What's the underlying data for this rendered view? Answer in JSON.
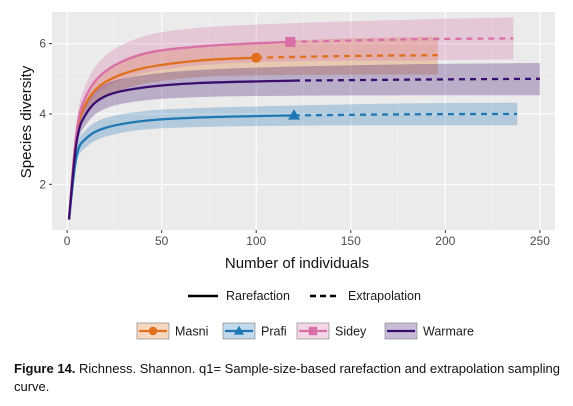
{
  "chart_data": {
    "type": "line",
    "xlabel": "Number of individuals",
    "ylabel": "Species diversity",
    "xlim": [
      -8,
      258
    ],
    "ylim": [
      0.7,
      6.9
    ],
    "x_ticks": [
      0,
      50,
      100,
      150,
      200,
      250
    ],
    "y_ticks": [
      2,
      4,
      6
    ],
    "grid": true,
    "line_types": [
      {
        "name": "Rarefaction",
        "style": "solid"
      },
      {
        "name": "Extrapolation",
        "style": "dashed"
      }
    ],
    "series": [
      {
        "name": "Masni",
        "color": "#E0701E",
        "marker": "circle",
        "observed": [
          100,
          5.6
        ],
        "x_max": 196,
        "points": [
          [
            1,
            1
          ],
          [
            5,
            3.4
          ],
          [
            10,
            4.3
          ],
          [
            20,
            4.9
          ],
          [
            40,
            5.3
          ],
          [
            70,
            5.52
          ],
          [
            100,
            5.6
          ],
          [
            150,
            5.65
          ],
          [
            196,
            5.67
          ]
        ],
        "ci_lower": [
          [
            1,
            1
          ],
          [
            5,
            3.2
          ],
          [
            10,
            4.0
          ],
          [
            20,
            4.5
          ],
          [
            40,
            4.85
          ],
          [
            70,
            5.05
          ],
          [
            100,
            5.1
          ],
          [
            150,
            5.12
          ],
          [
            196,
            5.12
          ]
        ],
        "ci_upper": [
          [
            1,
            1
          ],
          [
            5,
            3.6
          ],
          [
            10,
            4.55
          ],
          [
            20,
            5.25
          ],
          [
            40,
            5.75
          ],
          [
            70,
            5.95
          ],
          [
            100,
            6.05
          ],
          [
            150,
            6.15
          ],
          [
            196,
            6.2
          ]
        ]
      },
      {
        "name": "Prafi",
        "color": "#1F78B4",
        "marker": "triangle",
        "observed": [
          120,
          3.96
        ],
        "x_max": 238,
        "points": [
          [
            1,
            1
          ],
          [
            5,
            2.8
          ],
          [
            10,
            3.3
          ],
          [
            20,
            3.6
          ],
          [
            40,
            3.8
          ],
          [
            70,
            3.9
          ],
          [
            120,
            3.96
          ],
          [
            180,
            3.99
          ],
          [
            238,
            4.0
          ]
        ],
        "ci_lower": [
          [
            1,
            1
          ],
          [
            5,
            2.6
          ],
          [
            10,
            3.05
          ],
          [
            20,
            3.35
          ],
          [
            40,
            3.55
          ],
          [
            70,
            3.63
          ],
          [
            120,
            3.67
          ],
          [
            180,
            3.68
          ],
          [
            238,
            3.68
          ]
        ],
        "ci_upper": [
          [
            1,
            1
          ],
          [
            5,
            3.0
          ],
          [
            10,
            3.55
          ],
          [
            20,
            3.88
          ],
          [
            40,
            4.08
          ],
          [
            70,
            4.17
          ],
          [
            120,
            4.24
          ],
          [
            180,
            4.3
          ],
          [
            238,
            4.32
          ]
        ]
      },
      {
        "name": "Sidey",
        "color": "#D86FA8",
        "marker": "square",
        "observed": [
          118,
          6.05
        ],
        "x_max": 236,
        "points": [
          [
            1,
            1
          ],
          [
            5,
            3.5
          ],
          [
            10,
            4.5
          ],
          [
            20,
            5.2
          ],
          [
            40,
            5.7
          ],
          [
            70,
            5.92
          ],
          [
            118,
            6.05
          ],
          [
            180,
            6.12
          ],
          [
            236,
            6.15
          ]
        ],
        "ci_lower": [
          [
            1,
            1
          ],
          [
            5,
            3.25
          ],
          [
            10,
            4.15
          ],
          [
            20,
            4.75
          ],
          [
            40,
            5.15
          ],
          [
            70,
            5.38
          ],
          [
            118,
            5.5
          ],
          [
            180,
            5.52
          ],
          [
            236,
            5.55
          ]
        ],
        "ci_upper": [
          [
            1,
            1
          ],
          [
            5,
            3.75
          ],
          [
            10,
            4.85
          ],
          [
            20,
            5.65
          ],
          [
            40,
            6.2
          ],
          [
            70,
            6.45
          ],
          [
            118,
            6.58
          ],
          [
            180,
            6.68
          ],
          [
            236,
            6.75
          ]
        ]
      },
      {
        "name": "Warmare",
        "color": "#3A0D6E",
        "marker": "none",
        "observed": [
          120,
          4.95
        ],
        "x_max": 250,
        "points": [
          [
            1,
            1
          ],
          [
            5,
            3.2
          ],
          [
            10,
            4.0
          ],
          [
            20,
            4.5
          ],
          [
            40,
            4.75
          ],
          [
            70,
            4.88
          ],
          [
            120,
            4.95
          ],
          [
            190,
            4.98
          ],
          [
            250,
            5.0
          ]
        ],
        "ci_lower": [
          [
            1,
            1
          ],
          [
            5,
            3.0
          ],
          [
            10,
            3.7
          ],
          [
            20,
            4.15
          ],
          [
            40,
            4.38
          ],
          [
            70,
            4.48
          ],
          [
            120,
            4.52
          ],
          [
            190,
            4.53
          ],
          [
            250,
            4.53
          ]
        ],
        "ci_upper": [
          [
            1,
            1
          ],
          [
            5,
            3.4
          ],
          [
            10,
            4.3
          ],
          [
            20,
            4.85
          ],
          [
            40,
            5.1
          ],
          [
            70,
            5.25
          ],
          [
            120,
            5.35
          ],
          [
            190,
            5.42
          ],
          [
            250,
            5.45
          ]
        ]
      }
    ]
  },
  "caption": {
    "label": "Figure 14.",
    "text": " Richness. Shannon. q1= Sample-size-based rarefaction and extrapolation sampling curve."
  }
}
